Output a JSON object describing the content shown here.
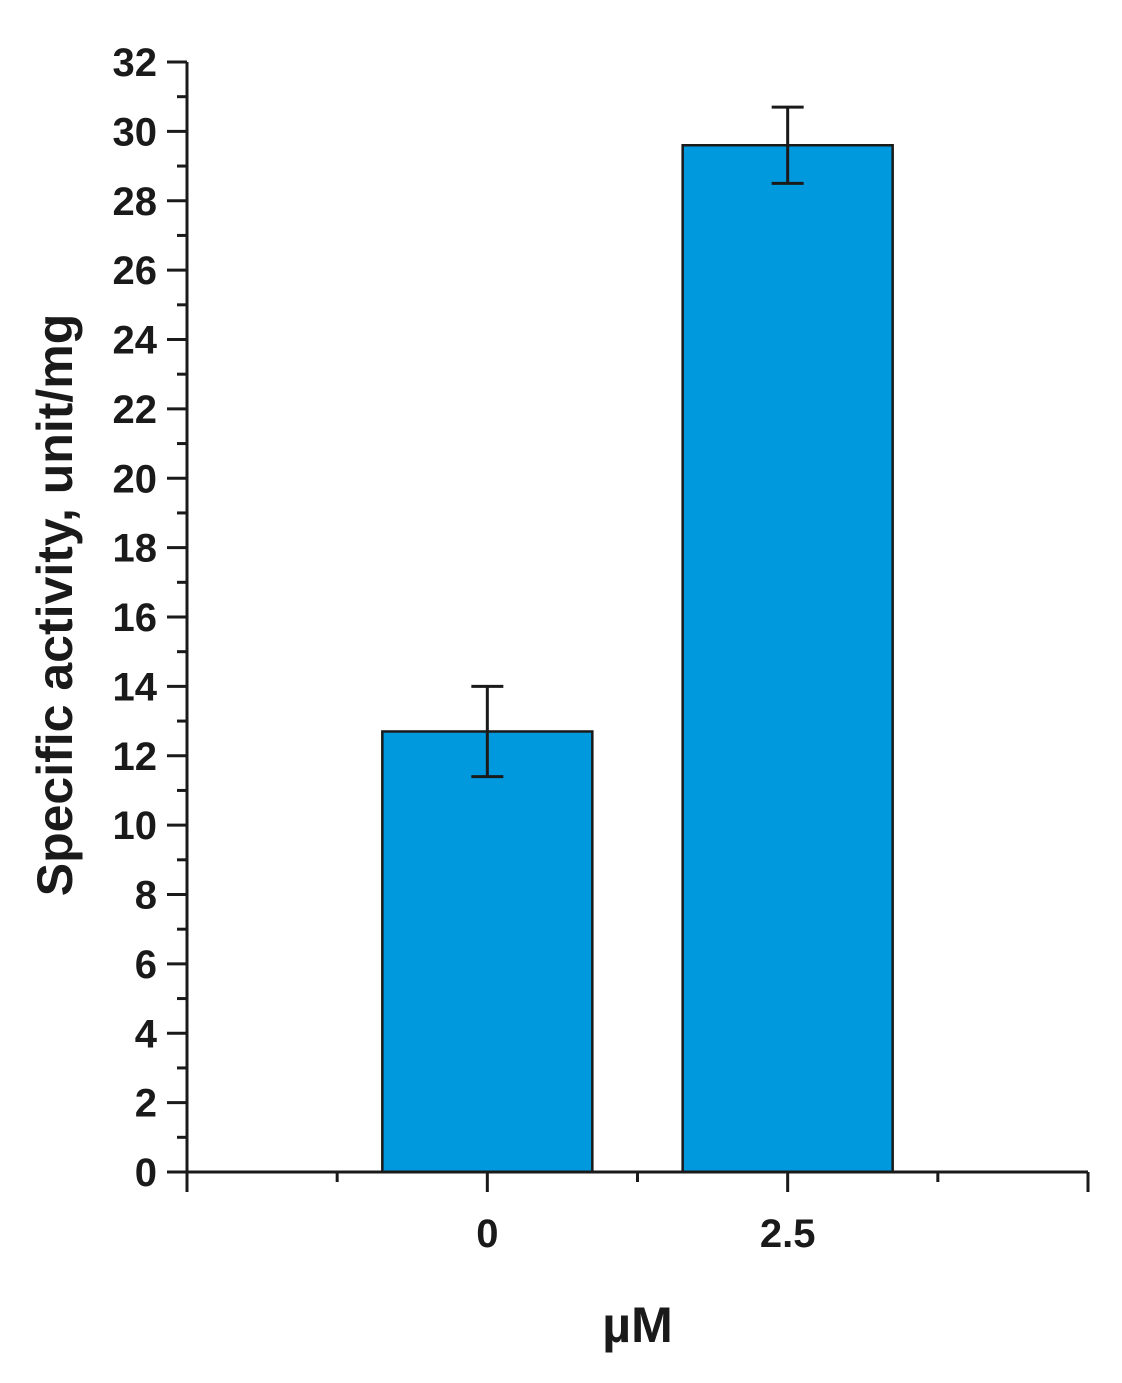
{
  "chart_data": {
    "type": "bar",
    "title": "",
    "xlabel": "µM",
    "ylabel": "Specific activity, unit/mg",
    "categories": [
      "0",
      "2.5"
    ],
    "values": [
      12.7,
      29.6
    ],
    "errors": [
      1.3,
      1.1
    ],
    "ylim": [
      0,
      32
    ],
    "yticks": [
      0,
      2,
      4,
      6,
      8,
      10,
      12,
      14,
      16,
      18,
      20,
      22,
      24,
      26,
      28,
      30,
      32
    ],
    "ytick_labels": [
      "0",
      "2",
      "4",
      "6",
      "8",
      "10",
      "12",
      "14",
      "16",
      "18",
      "20",
      "22",
      "24",
      "26",
      "28",
      "30",
      "32"
    ],
    "bar_color": "#0099dd",
    "grid": false,
    "legend": false
  }
}
